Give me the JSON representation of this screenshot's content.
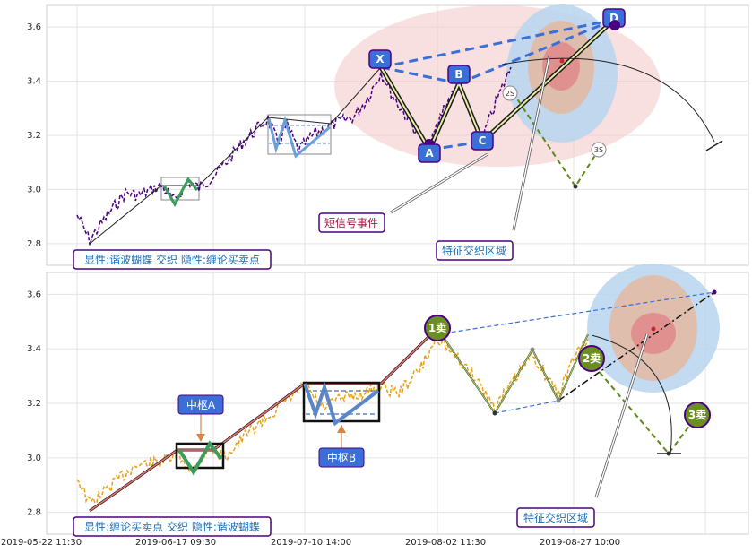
{
  "chart_data": [
    {
      "type": "line",
      "panel": "top",
      "ylim": [
        2.72,
        3.68
      ],
      "yticks": [
        2.8,
        3.0,
        3.2,
        3.4,
        3.6
      ],
      "grid": true,
      "price_color": "#4b0082",
      "legend_text": "显性:谐波蝴蝶 交织 隐性:缠论买卖点",
      "annotations": [
        {
          "text": "短信号事件",
          "color": "#a0153e"
        },
        {
          "text": "特征交织区域",
          "color": "#1f6fb2"
        }
      ],
      "pattern_points": [
        {
          "label": "X",
          "x": 0.268,
          "y": 3.47
        },
        {
          "label": "A",
          "x": 0.335,
          "y": 3.16
        },
        {
          "label": "B",
          "x": 0.368,
          "y": 3.38
        },
        {
          "label": "C",
          "x": 0.388,
          "y": 3.2
        },
        {
          "label": "D",
          "x": 0.512,
          "y": 3.6
        }
      ],
      "small_markers": [
        "2S",
        "3S"
      ]
    },
    {
      "type": "line",
      "panel": "bottom",
      "ylim": [
        2.72,
        3.68
      ],
      "yticks": [
        2.8,
        3.0,
        3.2,
        3.4,
        3.6
      ],
      "grid": true,
      "price_color": "#e8a21a",
      "legend_text": "显性:缠论买卖点 交织 隐性:谐波蝴蝶",
      "annotations": [
        {
          "text": "中枢A"
        },
        {
          "text": "中枢B"
        },
        {
          "text": "特征交织区域"
        }
      ],
      "signals": [
        {
          "label": "1卖",
          "color": "#5a8a1a"
        },
        {
          "label": "2卖",
          "color": "#5a8a1a"
        },
        {
          "label": "3卖",
          "color": "#5a8a1a"
        }
      ]
    }
  ],
  "x_tick_labels": [
    "2019-05-22 11:30",
    "2019-06-17 09:30",
    "2019-07-10 14:00",
    "2019-08-02 11:30",
    "2019-08-27 10:00"
  ]
}
